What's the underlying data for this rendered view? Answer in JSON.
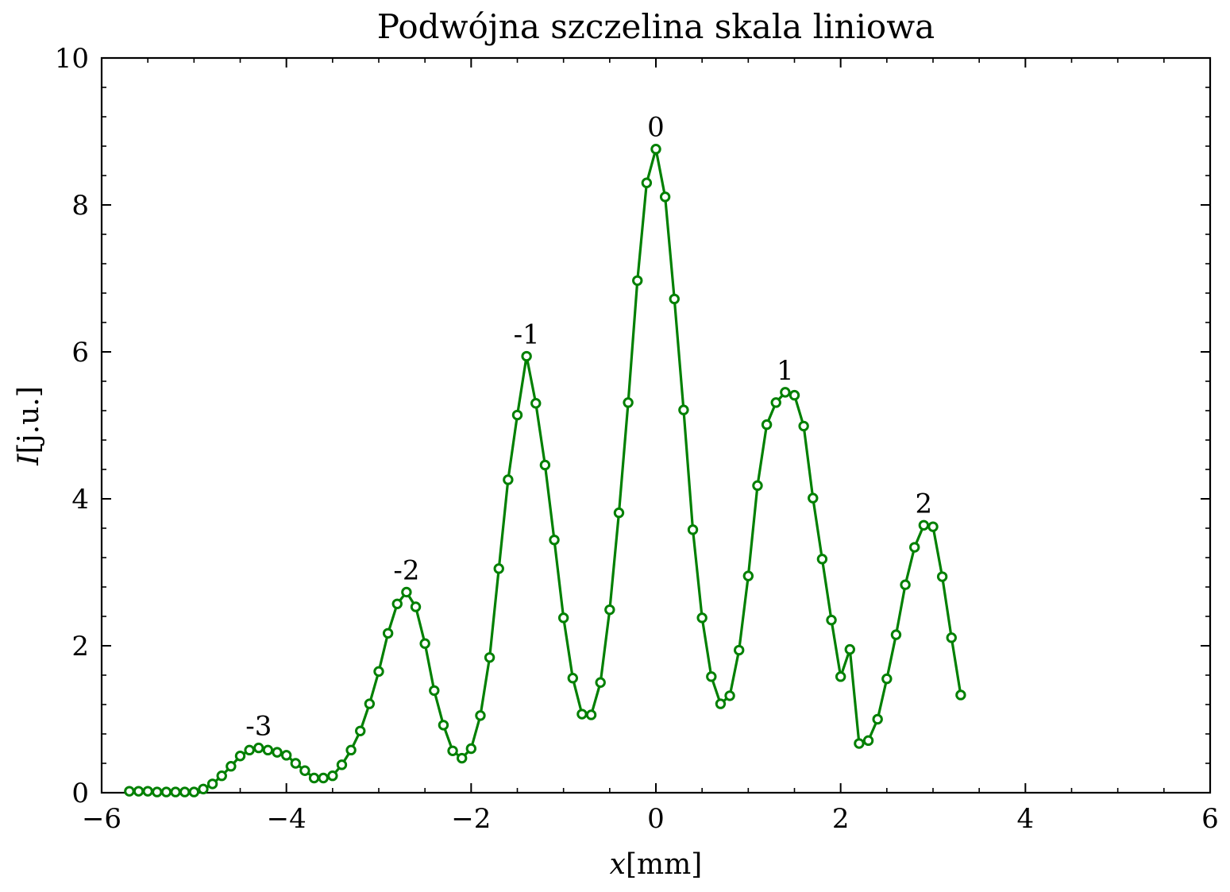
{
  "chart_data": {
    "type": "line",
    "title": "Podwójna szczelina skala liniowa",
    "xlabel_var": "x",
    "xlabel_unit": "[mm]",
    "ylabel_var": "I",
    "ylabel_unit": "[j.u.]",
    "xlim": [
      -6,
      6
    ],
    "ylim": [
      0,
      10
    ],
    "x_ticks": [
      -6,
      -4,
      -2,
      0,
      2,
      4,
      6
    ],
    "x_tick_labels": [
      "−6",
      "−4",
      "−2",
      "0",
      "2",
      "4",
      "6"
    ],
    "y_ticks": [
      0,
      2,
      4,
      6,
      8,
      10
    ],
    "y_tick_labels": [
      "0",
      "2",
      "4",
      "6",
      "8",
      "10"
    ],
    "grid": false,
    "marker": "open-circle",
    "line_color": "#008000",
    "series": [
      {
        "x": [
          -5.7,
          -5.6,
          -5.5,
          -5.4,
          -5.3,
          -5.2,
          -5.1,
          -5.0,
          -4.9,
          -4.8,
          -4.7,
          -4.6,
          -4.5,
          -4.4,
          -4.3,
          -4.2,
          -4.1,
          -4.0,
          -3.9,
          -3.8,
          -3.7,
          -3.6,
          -3.5,
          -3.4,
          -3.3,
          -3.2,
          -3.1,
          -3.0,
          -2.9,
          -2.8,
          -2.7,
          -2.6,
          -2.5,
          -2.4,
          -2.3,
          -2.2,
          -2.1,
          -2.0,
          -1.9,
          -1.8,
          -1.7,
          -1.6,
          -1.5,
          -1.4,
          -1.3,
          -1.2,
          -1.1,
          -1.0,
          -0.9,
          -0.8,
          -0.7,
          -0.6,
          -0.5,
          -0.4,
          -0.3,
          -0.2,
          -0.1,
          0.0,
          0.1,
          0.2,
          0.3,
          0.4,
          0.5,
          0.6,
          0.7,
          0.8,
          0.9,
          1.0,
          1.1,
          1.2,
          1.3,
          1.4,
          1.5,
          1.6,
          1.7,
          1.8,
          1.9,
          2.0,
          2.1,
          2.2,
          2.3,
          2.4,
          2.5,
          2.6,
          2.7,
          2.8,
          2.9,
          3.0,
          3.1,
          3.2,
          3.3
        ],
        "y": [
          0.02,
          0.02,
          0.02,
          0.01,
          0.01,
          0.01,
          0.01,
          0.01,
          0.05,
          0.12,
          0.23,
          0.36,
          0.5,
          0.58,
          0.61,
          0.58,
          0.55,
          0.51,
          0.4,
          0.3,
          0.2,
          0.2,
          0.23,
          0.38,
          0.58,
          0.84,
          1.21,
          1.65,
          2.17,
          2.57,
          2.73,
          2.53,
          2.03,
          1.39,
          0.92,
          0.57,
          0.47,
          0.6,
          1.05,
          1.84,
          3.05,
          4.26,
          5.14,
          5.94,
          5.3,
          4.46,
          3.44,
          2.38,
          1.56,
          1.07,
          1.06,
          1.5,
          2.49,
          3.81,
          5.31,
          6.97,
          8.3,
          8.76,
          8.11,
          6.72,
          5.21,
          3.58,
          2.38,
          1.58,
          1.21,
          1.32,
          1.94,
          2.95,
          4.18,
          5.01,
          5.31,
          5.45,
          5.41,
          4.99,
          4.01,
          3.18,
          2.35,
          1.58,
          1.95,
          0.67,
          0.71,
          1.0,
          1.55,
          2.15,
          2.83,
          3.34,
          3.64,
          3.62,
          2.94,
          2.11,
          1.33
        ]
      }
    ],
    "annotations": [
      {
        "text": "-3",
        "x": -4.3,
        "y": 0.61
      },
      {
        "text": "-2",
        "x": -2.7,
        "y": 2.73
      },
      {
        "text": "-1",
        "x": -1.4,
        "y": 5.94
      },
      {
        "text": "0",
        "x": 0.0,
        "y": 8.76
      },
      {
        "text": "1",
        "x": 1.4,
        "y": 5.45
      },
      {
        "text": "2",
        "x": 2.9,
        "y": 3.64
      }
    ]
  }
}
